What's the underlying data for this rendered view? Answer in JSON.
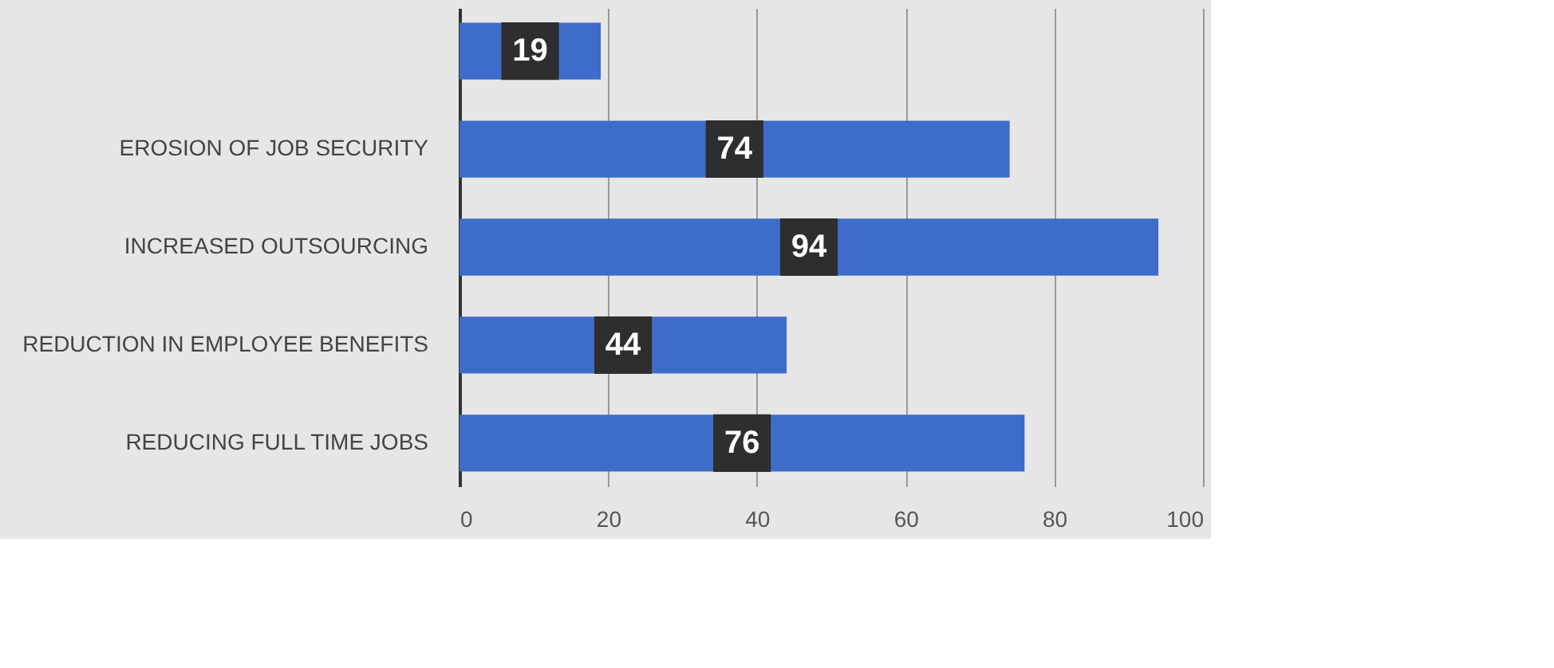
{
  "chart_data": {
    "type": "bar",
    "orientation": "horizontal",
    "categories": [
      null,
      "EROSION  OF JOB SECURITY",
      "INCREASED  OUTSOURCING",
      "REDUCTION  IN EMPLOYEE  BENEFITS",
      "REDUCING  FULL TIME JOBS"
    ],
    "values": [
      19,
      74,
      94,
      44,
      76
    ],
    "color": "#3d6cc9",
    "xlim": [
      0,
      100
    ],
    "xticks": [
      0,
      20,
      40,
      60,
      80,
      100
    ],
    "grid": "x",
    "data_labels": true
  }
}
